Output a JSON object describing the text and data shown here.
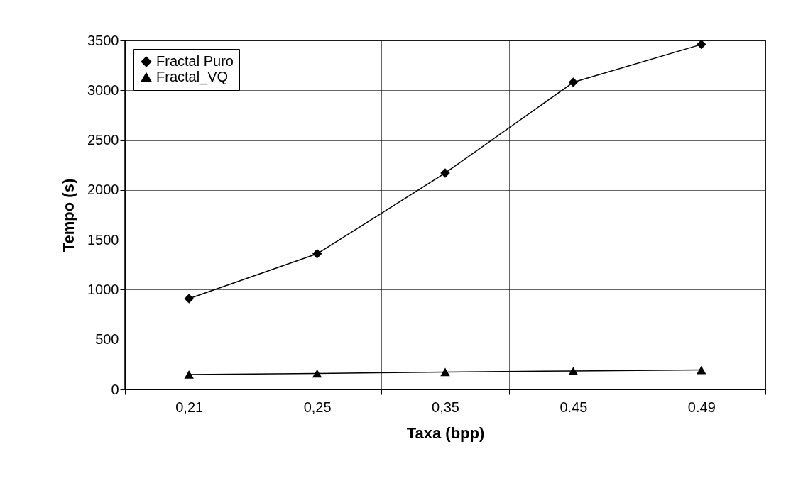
{
  "chart_data": {
    "type": "line",
    "xlabel": "Taxa (bpp)",
    "ylabel": "Tempo (s)",
    "categories": [
      "0,21",
      "0,25",
      "0,35",
      "0.45",
      "0.49"
    ],
    "series": [
      {
        "name": "Fractal Puro",
        "color": "#000000",
        "marker": "diamond",
        "values": [
          910,
          1360,
          2170,
          3080,
          3460
        ]
      },
      {
        "name": "Fractal_VQ",
        "color": "#000000",
        "marker": "triangle",
        "values": [
          150,
          160,
          175,
          185,
          195
        ]
      }
    ],
    "ylim": [
      0,
      3500
    ],
    "yticks": [
      0,
      500,
      1000,
      1500,
      2000,
      2500,
      3000,
      3500
    ],
    "grid": true,
    "legend": "top left",
    "line_style": "solid"
  }
}
